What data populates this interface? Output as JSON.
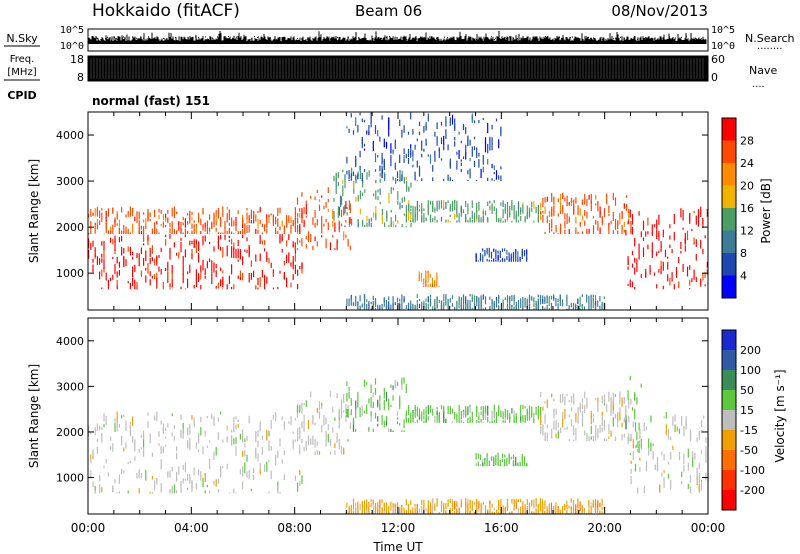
{
  "header": {
    "station": "Hokkaido (fitACF)",
    "beam": "Beam 06",
    "date": "08/Nov/2013"
  },
  "params": {
    "nsky_label": "N.Sky",
    "nsearch_label": "N.Search",
    "nsearch_dots": "........",
    "freq_label_1": "Freq.",
    "freq_label_2": "[MHz]",
    "nave_label": "Nave",
    "nave_dots": "....",
    "cpid_label": "CPID",
    "cpid_value": "normal (fast) 151",
    "noise_ticks_left": [
      "10^5",
      "10^0"
    ],
    "noise_ticks_right": [
      "10^5",
      "10^0"
    ],
    "freq_ticks": [
      "18",
      "8"
    ],
    "nave_ticks": [
      "60",
      "0"
    ]
  },
  "chart_data": [
    {
      "type": "heatmap",
      "name": "power",
      "ylabel": "Slant Range [km]",
      "ylim": [
        200,
        4500
      ],
      "yticks": [
        1000,
        2000,
        3000,
        4000
      ],
      "xlim_hours": [
        0,
        24
      ],
      "colorbar": {
        "label": "Power [dB]",
        "range": [
          0,
          32
        ],
        "ticks": [
          "4",
          "8",
          "12",
          "16",
          "20",
          "24",
          "28"
        ],
        "bands": [
          {
            "min": 0,
            "max": 4,
            "color": "#0000ff"
          },
          {
            "min": 4,
            "max": 8,
            "color": "#1e48b0"
          },
          {
            "min": 8,
            "max": 12,
            "color": "#3c7c96"
          },
          {
            "min": 12,
            "max": 16,
            "color": "#4c9e64"
          },
          {
            "min": 16,
            "max": 20,
            "color": "#f0b400"
          },
          {
            "min": 20,
            "max": 24,
            "color": "#ff8c00"
          },
          {
            "min": 24,
            "max": 28,
            "color": "#ff4a00"
          },
          {
            "min": 28,
            "max": 32,
            "color": "#ff0000"
          }
        ]
      },
      "regions": [
        {
          "t": [
            0,
            8.3
          ],
          "r": [
            650,
            1850
          ],
          "band": 7
        },
        {
          "t": [
            0,
            8.3
          ],
          "r": [
            1850,
            2450
          ],
          "band": 6
        },
        {
          "t": [
            8.0,
            10.2
          ],
          "r": [
            1500,
            2900
          ],
          "band": 6
        },
        {
          "t": [
            9.5,
            12.5
          ],
          "r": [
            2000,
            3300
          ],
          "band": 3
        },
        {
          "t": [
            10.0,
            16.0
          ],
          "r": [
            3000,
            4500
          ],
          "band": 1
        },
        {
          "t": [
            12.3,
            17.5
          ],
          "r": [
            2100,
            2600
          ],
          "band": 3
        },
        {
          "t": [
            15.0,
            17.0
          ],
          "r": [
            1250,
            1550
          ],
          "band": 1
        },
        {
          "t": [
            12.8,
            13.6
          ],
          "r": [
            700,
            1100
          ],
          "band": 5
        },
        {
          "t": [
            10.0,
            20.0
          ],
          "r": [
            200,
            550
          ],
          "band": 2
        },
        {
          "t": [
            17.5,
            21.0
          ],
          "r": [
            1850,
            2750
          ],
          "band": 6
        },
        {
          "t": [
            20.8,
            24.0
          ],
          "r": [
            650,
            2500
          ],
          "band": 7
        }
      ]
    },
    {
      "type": "heatmap",
      "name": "velocity",
      "ylabel": "Slant Range [km]",
      "xlabel": "Time UT",
      "ylim": [
        200,
        4500
      ],
      "yticks": [
        1000,
        2000,
        3000,
        4000
      ],
      "xlim_hours": [
        0,
        24
      ],
      "xticks": [
        "00:00",
        "04:00",
        "08:00",
        "12:00",
        "16:00",
        "20:00",
        "00:00"
      ],
      "colorbar": {
        "label": "Velocity [m s⁻¹]",
        "range": [
          -250,
          250
        ],
        "ticks": [
          "200",
          "100",
          "50",
          "15",
          "-15",
          "-50",
          "-100",
          "-200"
        ],
        "bands": [
          {
            "label": "> 200",
            "color": "#1a2ad0"
          },
          {
            "label": "100 to 200",
            "color": "#2f5aa8"
          },
          {
            "label": "50 to 100",
            "color": "#3c8c5a"
          },
          {
            "label": "15 to 50",
            "color": "#5cc83c"
          },
          {
            "label": "-15 to 15",
            "color": "#bebebe"
          },
          {
            "label": "-50 to -15",
            "color": "#f0a000"
          },
          {
            "label": "-100 to -50",
            "color": "#ff6e00"
          },
          {
            "label": "-200 to -100",
            "color": "#ff3200"
          },
          {
            "label": "< -200",
            "color": "#ff0000"
          }
        ]
      },
      "regions": [
        {
          "t": [
            0,
            8.3
          ],
          "r": [
            650,
            2450
          ],
          "band": 4
        },
        {
          "t": [
            8.0,
            10.2
          ],
          "r": [
            1500,
            2900
          ],
          "band": 4
        },
        {
          "t": [
            10.0,
            12.3
          ],
          "r": [
            2000,
            3200
          ],
          "band": 3
        },
        {
          "t": [
            12.3,
            17.5
          ],
          "r": [
            2200,
            2600
          ],
          "band": 3
        },
        {
          "t": [
            15.0,
            17.0
          ],
          "r": [
            1250,
            1550
          ],
          "band": 3
        },
        {
          "t": [
            10.0,
            20.0
          ],
          "r": [
            200,
            550
          ],
          "band": 5
        },
        {
          "t": [
            17.5,
            21.0
          ],
          "r": [
            1800,
            2900
          ],
          "band": 4
        },
        {
          "t": [
            20.8,
            21.4
          ],
          "r": [
            1500,
            3300
          ],
          "band": 3
        },
        {
          "t": [
            21.0,
            24.0
          ],
          "r": [
            650,
            2500
          ],
          "band": 4
        }
      ]
    }
  ]
}
